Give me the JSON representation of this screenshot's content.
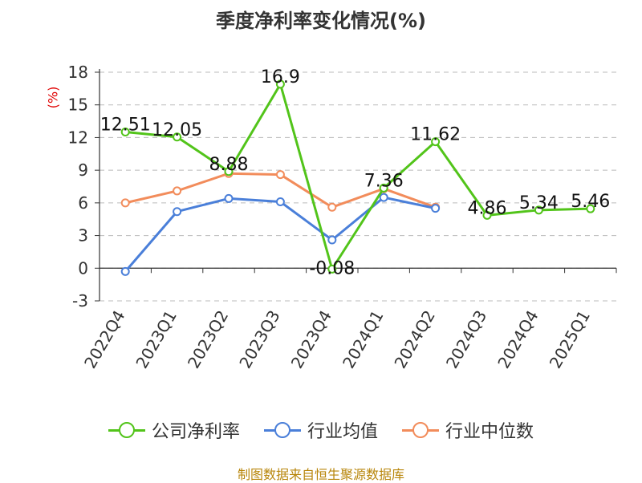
{
  "chart_data": {
    "type": "line",
    "title": "季度净利率变化情况(%)",
    "ylabel": "(%)",
    "categories": [
      "2022Q4",
      "2023Q1",
      "2023Q2",
      "2023Q3",
      "2023Q4",
      "2024Q1",
      "2024Q2",
      "2024Q3",
      "2024Q4",
      "2025Q1"
    ],
    "ylim": [
      -3,
      18
    ],
    "yticks": [
      -3,
      0,
      3,
      6,
      9,
      12,
      15,
      18
    ],
    "grid": true,
    "legend_position": "bottom",
    "series": [
      {
        "name": "公司净利率",
        "color": "#52c41a",
        "values": [
          12.51,
          12.05,
          8.88,
          16.9,
          -0.08,
          7.36,
          11.62,
          4.86,
          5.34,
          5.46
        ],
        "labels": true
      },
      {
        "name": "行业均值",
        "color": "#4a7fd9",
        "values": [
          -0.3,
          5.2,
          6.4,
          6.1,
          2.6,
          6.5,
          5.5,
          null,
          null,
          null
        ],
        "labels": false
      },
      {
        "name": "行业中位数",
        "color": "#f28c5b",
        "values": [
          6.0,
          7.1,
          8.7,
          8.6,
          5.6,
          7.3,
          5.6,
          null,
          null,
          null
        ],
        "labels": false
      }
    ]
  },
  "source": "制图数据来自恒生聚源数据库"
}
